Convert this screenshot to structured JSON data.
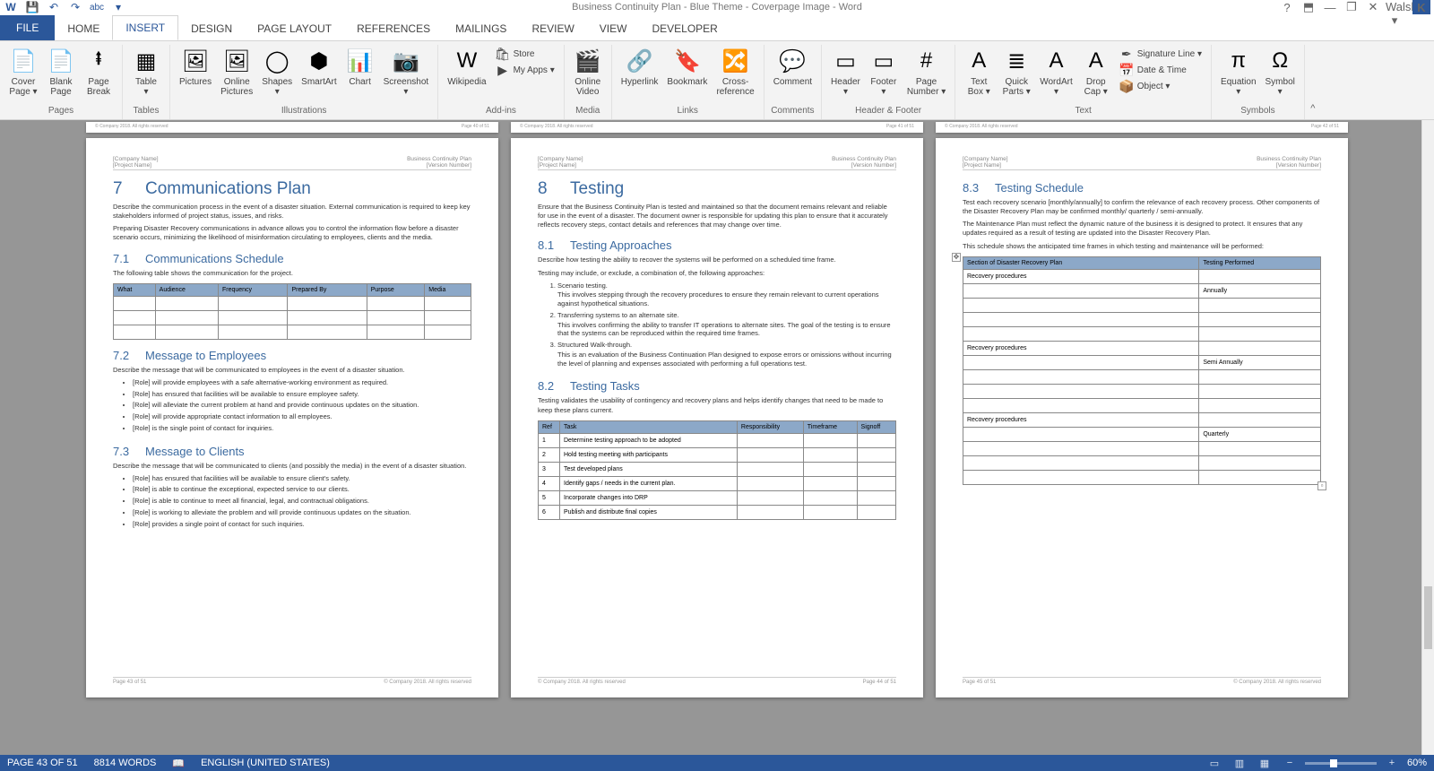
{
  "title": "Business Continuity Plan - Blue Theme - Coverpage Image - Word",
  "user": "Ivan Walsh",
  "user_initial": "K",
  "tabs": [
    "FILE",
    "HOME",
    "INSERT",
    "DESIGN",
    "PAGE LAYOUT",
    "REFERENCES",
    "MAILINGS",
    "REVIEW",
    "VIEW",
    "DEVELOPER"
  ],
  "ribbon": {
    "groups": [
      {
        "label": "Pages",
        "buttons": [
          {
            "icon": "📄",
            "label": "Cover\nPage ▾"
          },
          {
            "icon": "📄",
            "label": "Blank\nPage"
          },
          {
            "icon": "⭻",
            "label": "Page\nBreak"
          }
        ]
      },
      {
        "label": "Tables",
        "buttons": [
          {
            "icon": "▦",
            "label": "Table\n▾"
          }
        ]
      },
      {
        "label": "Illustrations",
        "buttons": [
          {
            "icon": "🖼",
            "label": "Pictures"
          },
          {
            "icon": "🖼",
            "label": "Online\nPictures"
          },
          {
            "icon": "◯",
            "label": "Shapes\n▾"
          },
          {
            "icon": "⬢",
            "label": "SmartArt"
          },
          {
            "icon": "📊",
            "label": "Chart"
          },
          {
            "icon": "📷",
            "label": "Screenshot\n▾"
          }
        ]
      },
      {
        "label": "Add-ins",
        "stacks": [
          {
            "icon": "🛍",
            "label": "Store"
          },
          {
            "icon": "▶",
            "label": "My Apps ▾"
          }
        ],
        "buttons": [
          {
            "icon": "W",
            "label": "Wikipedia"
          }
        ]
      },
      {
        "label": "Media",
        "buttons": [
          {
            "icon": "🎬",
            "label": "Online\nVideo"
          }
        ]
      },
      {
        "label": "Links",
        "buttons": [
          {
            "icon": "🔗",
            "label": "Hyperlink"
          },
          {
            "icon": "🔖",
            "label": "Bookmark"
          },
          {
            "icon": "🔀",
            "label": "Cross-\nreference"
          }
        ]
      },
      {
        "label": "Comments",
        "buttons": [
          {
            "icon": "💬",
            "label": "Comment"
          }
        ]
      },
      {
        "label": "Header & Footer",
        "buttons": [
          {
            "icon": "▭",
            "label": "Header\n▾"
          },
          {
            "icon": "▭",
            "label": "Footer\n▾"
          },
          {
            "icon": "#",
            "label": "Page\nNumber ▾"
          }
        ]
      },
      {
        "label": "Text",
        "buttons": [
          {
            "icon": "A",
            "label": "Text\nBox ▾"
          },
          {
            "icon": "≣",
            "label": "Quick\nParts ▾"
          },
          {
            "icon": "A",
            "label": "WordArt\n▾"
          },
          {
            "icon": "A",
            "label": "Drop\nCap ▾"
          }
        ],
        "stacks": [
          {
            "icon": "✒",
            "label": "Signature Line ▾"
          },
          {
            "icon": "📅",
            "label": "Date & Time"
          },
          {
            "icon": "📦",
            "label": "Object ▾"
          }
        ]
      },
      {
        "label": "Symbols",
        "buttons": [
          {
            "icon": "π",
            "label": "Equation\n▾"
          },
          {
            "icon": "Ω",
            "label": "Symbol\n▾"
          }
        ]
      }
    ]
  },
  "footer_sliver": {
    "left": "Page 40 of 51",
    "right": "© Company 2018. All rights reserved",
    "p2l": "Page 41 of 51",
    "p3l": "Page 42 of 51"
  },
  "doc_header": {
    "company": "[Company Name]",
    "project": "[Project Name]",
    "plan": "Business Continuity Plan",
    "ver": "[Version Number]"
  },
  "doc_footer": {
    "copy": "© Company 2018. All rights reserved",
    "p1": "Page 43 of 51",
    "p2": "Page 44 of 51",
    "p3": "Page 45 of 51"
  },
  "page1": {
    "h1_num": "7",
    "h1": "Communications Plan",
    "intro1": "Describe the communication process in the event of a disaster situation. External communication is required to keep key stakeholders informed of project status, issues, and risks.",
    "intro2": "Preparing Disaster Recovery communications in advance allows you to control the information flow before a disaster scenario occurs, minimizing the likelihood of misinformation circulating to employees, clients and the media.",
    "s71_num": "7.1",
    "s71": "Communications Schedule",
    "s71_intro": "The following table shows the communication for the project.",
    "tbl71_cols": [
      "What",
      "Audience",
      "Frequency",
      "Prepared By",
      "Purpose",
      "Media"
    ],
    "s72_num": "7.2",
    "s72": "Message to Employees",
    "s72_intro": "Describe the message that will be communicated to employees in the event of a disaster situation.",
    "s72_bullets": [
      "[Role] will provide employees with a safe alternative-working environment as required.",
      "[Role] has ensured that facilities will be available to ensure employee safety.",
      "[Role] will alleviate the current problem at hand and provide continuous updates on the situation.",
      "[Role] will provide appropriate contact information to all employees.",
      "[Role] is the single point of contact for inquiries."
    ],
    "s73_num": "7.3",
    "s73": "Message to Clients",
    "s73_intro": "Describe the message that will be communicated to clients (and possibly the media) in the event of a disaster situation.",
    "s73_bullets": [
      "[Role] has ensured that facilities will be available to ensure client's safety.",
      "[Role] is able to continue the exceptional, expected service to our clients.",
      "[Role] is able to continue to meet all financial, legal, and contractual obligations.",
      "[Role] is working to alleviate the problem and will provide continuous updates on the situation.",
      "[Role] provides a single point of contact for such inquiries."
    ]
  },
  "page2": {
    "h1_num": "8",
    "h1": "Testing",
    "intro": "Ensure that the Business Continuity Plan is tested and maintained so that the document remains relevant and reliable for use in the event of a disaster.  The document owner is responsible for updating this plan to ensure that it accurately reflects recovery steps, contact details and references that may change over time.",
    "s81_num": "8.1",
    "s81": "Testing Approaches",
    "s81_intro": "Describe how testing the ability to recover the systems will be performed on a scheduled time frame.",
    "s81_lead": "Testing may include, or exclude, a combination of, the following approaches:",
    "s81_items": [
      {
        "title": "Scenario testing.",
        "body": "This involves stepping through the recovery procedures to ensure they remain relevant to current operations against hypothetical situations."
      },
      {
        "title": "Transferring systems to an alternate site.",
        "body": "This involves confirming the ability to transfer IT operations to alternate sites. The goal of the testing is to ensure that the systems can be reproduced within the required time frames."
      },
      {
        "title": "Structured Walk-through.",
        "body": "This is an evaluation of the Business Continuation Plan designed to expose errors or omissions without incurring the level of planning and expenses associated with performing a full operations test."
      }
    ],
    "s82_num": "8.2",
    "s82": "Testing Tasks",
    "s82_intro": "Testing validates the usability of contingency and recovery plans and helps identify changes that need to be made to keep these plans current.",
    "tbl82_cols": [
      "Ref",
      "Task",
      "Responsibility",
      "Timeframe",
      "Signoff"
    ],
    "tbl82_rows": [
      [
        "1",
        "Determine testing approach to be adopted",
        "",
        "",
        ""
      ],
      [
        "2",
        "Hold testing meeting with participants",
        "",
        "",
        ""
      ],
      [
        "3",
        "Test developed plans",
        "",
        "",
        ""
      ],
      [
        "4",
        "Identify gaps / needs in the current plan.",
        "",
        "",
        ""
      ],
      [
        "5",
        "Incorporate changes into DRP",
        "",
        "",
        ""
      ],
      [
        "6",
        "Publish and distribute final copies",
        "",
        "",
        ""
      ]
    ]
  },
  "page3": {
    "s83_num": "8.3",
    "s83": "Testing Schedule",
    "p1": "Test each recovery scenario [monthly/annually] to confirm the relevance of each recovery process. Other components of the Disaster Recovery Plan may be confirmed monthly/ quarterly / semi-annually.",
    "p2": "The Maintenance Plan must reflect the dynamic nature of the business it is designed to protect. It ensures that any updates required as a result of testing are updated into the Disaster Recovery Plan.",
    "p3": "This schedule shows the anticipated time frames in which testing and maintenance will be performed:",
    "tbl_cols": [
      "Section of Disaster Recovery Plan",
      "Testing Performed"
    ],
    "tbl_rows": [
      [
        "Recovery procedures",
        ""
      ],
      [
        "",
        "Annually"
      ],
      [
        "",
        ""
      ],
      [
        "",
        ""
      ],
      [
        "",
        ""
      ],
      [
        "Recovery procedures",
        ""
      ],
      [
        "",
        "Semi Annually"
      ],
      [
        "",
        ""
      ],
      [
        "",
        ""
      ],
      [
        "",
        ""
      ],
      [
        "Recovery procedures",
        ""
      ],
      [
        "",
        "Quarterly"
      ],
      [
        "",
        ""
      ],
      [
        "",
        ""
      ],
      [
        "",
        ""
      ]
    ]
  },
  "status": {
    "page": "PAGE 43 OF 51",
    "words": "8814 WORDS",
    "lang": "ENGLISH (UNITED STATES)",
    "zoom": "60%"
  }
}
